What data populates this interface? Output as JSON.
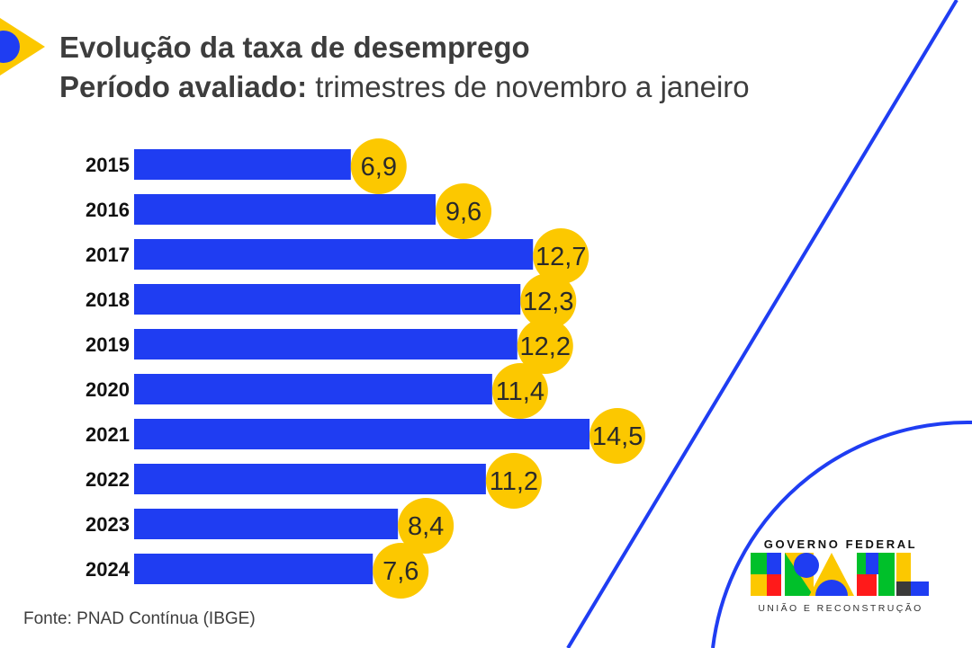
{
  "header": {
    "title": "Evolução da taxa de desemprego",
    "subtitle_bold": "Período avaliado:",
    "subtitle_rest": " trimestres de novembro a janeiro"
  },
  "chart_data": {
    "type": "bar",
    "orientation": "horizontal",
    "title": "Evolução da taxa de desemprego",
    "subtitle": "Período avaliado: trimestres de novembro a janeiro",
    "categories": [
      "2015",
      "2016",
      "2017",
      "2018",
      "2019",
      "2020",
      "2021",
      "2022",
      "2023",
      "2024"
    ],
    "values": [
      6.9,
      9.6,
      12.7,
      12.3,
      12.2,
      11.4,
      14.5,
      11.2,
      8.4,
      7.6
    ],
    "labels": [
      "6,9",
      "9,6",
      "12,7",
      "12,3",
      "12,2",
      "11,4",
      "14,5",
      "11,2",
      "8,4",
      "7,6"
    ],
    "xlim": [
      0,
      16
    ],
    "grid": false,
    "colors": {
      "bar": "#1f3df2",
      "label_bubble": "#fcc800",
      "text": "#3d3d3d"
    }
  },
  "footer": {
    "source": "Fonte: PNAD Contínua (IBGE)"
  },
  "logo": {
    "top": "GOVERNO FEDERAL",
    "word": "BRASIL",
    "bottom": "UNIÃO E RECONSTRUÇÃO"
  }
}
